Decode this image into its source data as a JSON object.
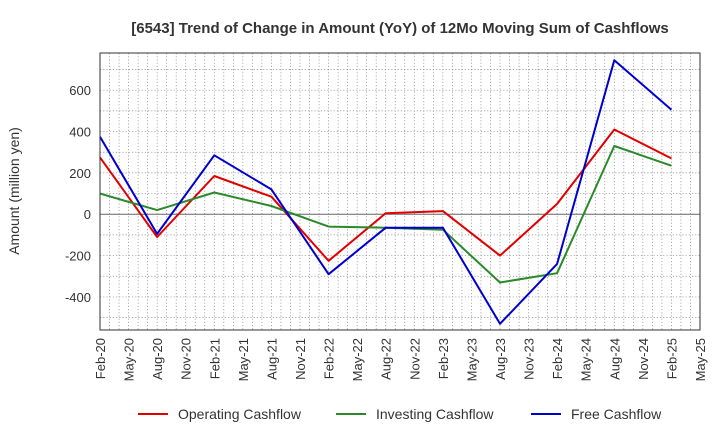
{
  "chart_data": {
    "type": "line",
    "title": "[6543]  Trend of Change in Amount (YoY) of 12Mo Moving Sum of Cashflows",
    "xlabel": "",
    "ylabel": "Amount (million yen)",
    "x": [
      "Feb-20",
      "May-20",
      "Aug-20",
      "Nov-20",
      "Feb-21",
      "May-21",
      "Aug-21",
      "Nov-21",
      "Feb-22",
      "May-22",
      "Aug-22",
      "Nov-22",
      "Feb-23",
      "May-23",
      "Aug-23",
      "Nov-23",
      "Feb-24",
      "May-24",
      "Aug-24",
      "Nov-24",
      "Feb-25",
      "May-25"
    ],
    "ylim": [
      -560,
      780
    ],
    "yticks": [
      -400,
      -200,
      0,
      200,
      400,
      600
    ],
    "grid": true,
    "legend_position": "bottom",
    "series": [
      {
        "name": "Operating Cashflow",
        "color": "#e00000",
        "values": [
          275,
          null,
          -110,
          null,
          185,
          null,
          85,
          null,
          -225,
          null,
          5,
          null,
          15,
          null,
          -200,
          null,
          50,
          null,
          410,
          null,
          270,
          null
        ]
      },
      {
        "name": "Investing Cashflow",
        "color": "#2a8a2a",
        "values": [
          100,
          null,
          20,
          null,
          105,
          null,
          40,
          null,
          -60,
          null,
          -65,
          null,
          -75,
          null,
          -330,
          null,
          -285,
          null,
          330,
          null,
          235,
          null
        ]
      },
      {
        "name": "Free Cashflow",
        "color": "#0000cc",
        "values": [
          375,
          null,
          -95,
          null,
          285,
          null,
          120,
          null,
          -290,
          null,
          -65,
          null,
          -65,
          null,
          -530,
          null,
          -240,
          null,
          745,
          null,
          505,
          null
        ]
      }
    ]
  }
}
